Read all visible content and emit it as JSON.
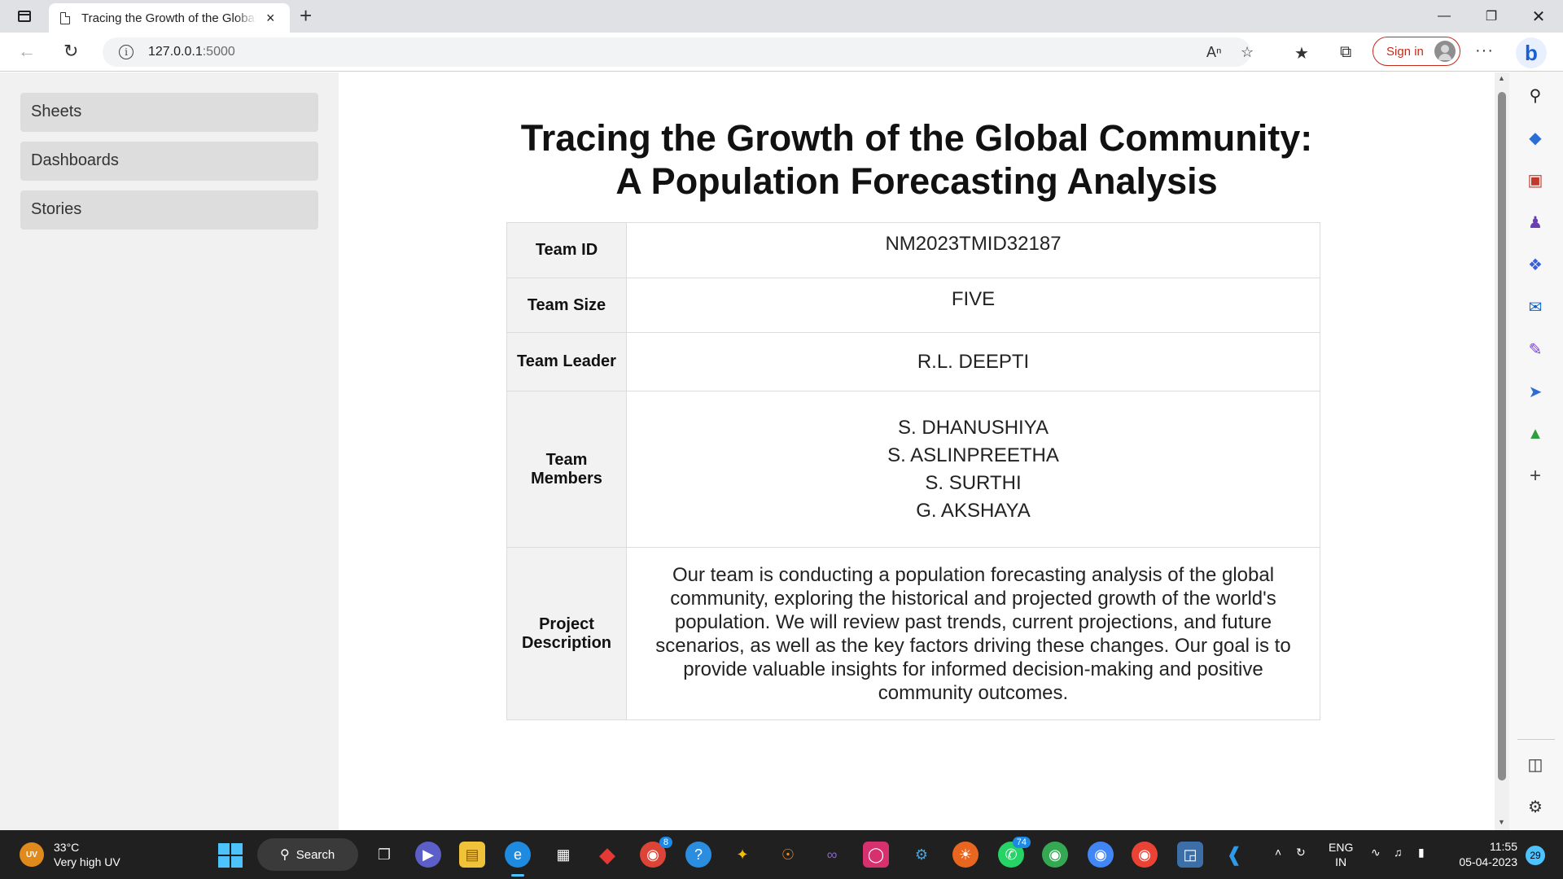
{
  "browser": {
    "tab_title": "Tracing the Growth of the Global Community",
    "tab_close": "×",
    "new_tab": "+",
    "url_host": "127.0.0.1",
    "url_port": ":5000",
    "sign_in": "Sign in",
    "more_menu": "···"
  },
  "sidebar": {
    "items": [
      {
        "label": "Sheets"
      },
      {
        "label": "Dashboards"
      },
      {
        "label": "Stories"
      }
    ]
  },
  "page": {
    "title_line1": "Tracing the Growth of the Global Community:",
    "title_line2": "A Population Forecasting Analysis",
    "table": {
      "team_id_label": "Team ID",
      "team_id": "NM2023TMID32187",
      "team_size_label": "Team Size",
      "team_size": "FIVE",
      "team_leader_label": "Team Leader",
      "team_leader": "R.L. DEEPTI",
      "team_members_label": "Team Members",
      "team_members": [
        "S. DHANUSHIYA",
        "S. ASLINPREETHA",
        "S. SURTHI",
        "G. AKSHAYA"
      ],
      "project_description_label": "Project Description",
      "project_description": "Our team is conducting a population forecasting analysis of the global community, exploring the historical and projected growth of the world's population. We will review past trends, current projections, and future scenarios, as well as the key factors driving these changes. Our goal is to provide valuable insights for informed decision-making and positive community outcomes."
    }
  },
  "taskbar": {
    "weather_badge": "UV",
    "temperature": "33°C",
    "weather_desc": "Very high UV",
    "search_label": "Search",
    "whatsapp_badge": "74",
    "chrome_badge": "8",
    "lang_line1": "ENG",
    "lang_line2": "IN",
    "time": "11:55",
    "date": "05-04-2023",
    "notifications": "29"
  },
  "colors": {
    "accent": "#4cc2ff",
    "signin_red": "#c42b1c",
    "sidebar_bg": "#f1f1f1",
    "sidebar_link_bg": "#dddddd",
    "table_label_bg": "#f2f2f2"
  }
}
